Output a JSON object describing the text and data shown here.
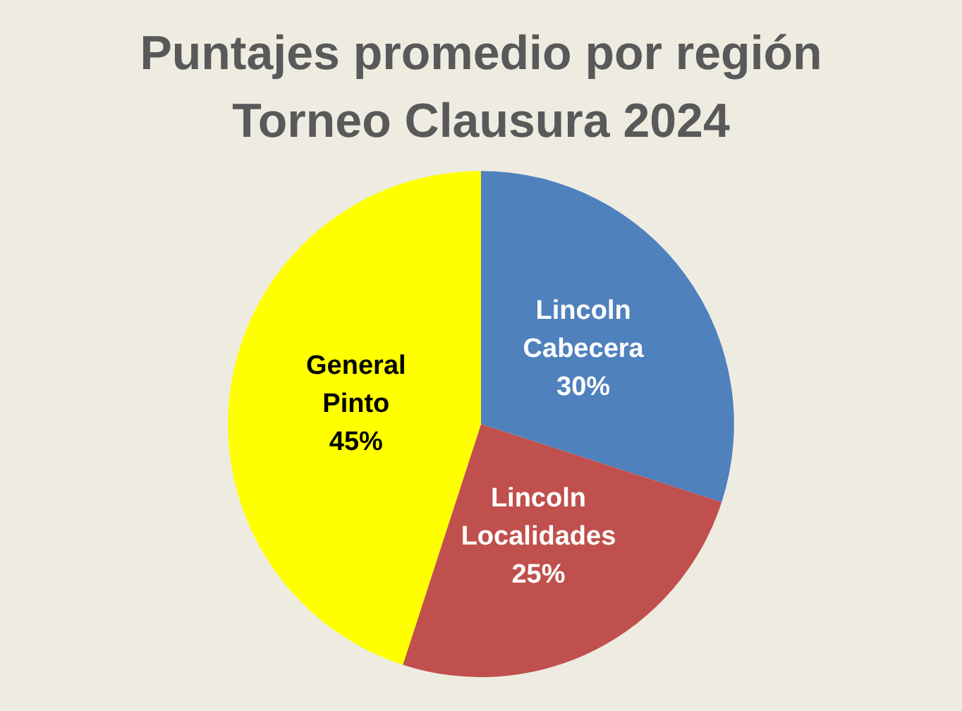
{
  "chart_data": {
    "type": "pie",
    "title": "Puntajes promedio por región",
    "subtitle": "Torneo Clausura 2024",
    "categories": [
      "Lincoln Cabecera",
      "Lincoln Localidades",
      "General Pinto"
    ],
    "values": [
      30,
      25,
      45
    ],
    "colors": [
      "#4f81bd",
      "#c0504d",
      "#ffff00"
    ],
    "value_labels": [
      "30%",
      "25%",
      "45%"
    ],
    "legend": false
  }
}
